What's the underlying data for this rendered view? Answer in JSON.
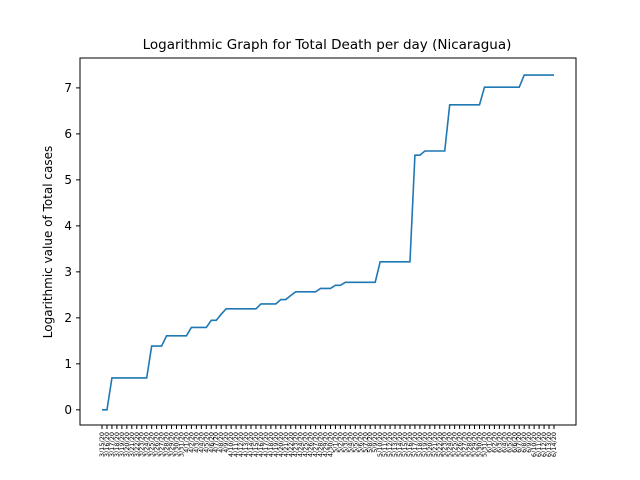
{
  "chart_data": {
    "type": "line",
    "title": "Logarithmic Graph for Total Death per day (Nicaragua)",
    "xlabel": "",
    "ylabel": "Logarithmic value of Total cases",
    "ylim": [
      -0.33,
      7.65
    ],
    "yticks": [
      0,
      1,
      2,
      3,
      4,
      5,
      6,
      7
    ],
    "grid": false,
    "x": [
      "3/15/20",
      "3/16/20",
      "3/17/20",
      "3/18/20",
      "3/19/20",
      "3/20/20",
      "3/21/20",
      "3/22/20",
      "3/23/20",
      "3/24/20",
      "3/25/20",
      "3/26/20",
      "3/27/20",
      "3/28/20",
      "3/29/20",
      "3/30/20",
      "3/31/20",
      "4/1/20",
      "4/2/20",
      "4/3/20",
      "4/4/20",
      "4/5/20",
      "4/6/20",
      "4/7/20",
      "4/8/20",
      "4/9/20",
      "4/10/20",
      "4/11/20",
      "4/12/20",
      "4/13/20",
      "4/14/20",
      "4/15/20",
      "4/16/20",
      "4/17/20",
      "4/18/20",
      "4/19/20",
      "4/20/20",
      "4/21/20",
      "4/22/20",
      "4/23/20",
      "4/24/20",
      "4/25/20",
      "4/26/20",
      "4/27/20",
      "4/28/20",
      "4/29/20",
      "4/30/20",
      "5/1/20",
      "5/2/20",
      "5/3/20",
      "5/4/20",
      "5/5/20",
      "5/6/20",
      "5/7/20",
      "5/8/20",
      "5/9/20",
      "5/10/20",
      "5/11/20",
      "5/12/20",
      "5/13/20",
      "5/14/20",
      "5/15/20",
      "5/16/20",
      "5/17/20",
      "5/18/20",
      "5/19/20",
      "5/20/20",
      "5/21/20",
      "5/22/20",
      "5/23/20",
      "5/24/20",
      "5/25/20",
      "5/26/20",
      "5/27/20",
      "5/28/20",
      "5/29/20",
      "5/30/20",
      "5/31/20",
      "6/1/20",
      "6/2/20",
      "6/3/20",
      "6/4/20",
      "6/5/20",
      "6/6/20",
      "6/7/20",
      "6/8/20",
      "6/9/20",
      "6/10/20",
      "6/11/20",
      "6/12/20",
      "6/13/20",
      "6/14/20"
    ],
    "series": [
      {
        "values": [
          0,
          0,
          0.693,
          0.693,
          0.693,
          0.693,
          0.693,
          0.693,
          0.693,
          0.693,
          1.386,
          1.386,
          1.386,
          1.609,
          1.609,
          1.609,
          1.609,
          1.609,
          1.792,
          1.792,
          1.792,
          1.792,
          1.946,
          1.946,
          2.079,
          2.197,
          2.197,
          2.197,
          2.197,
          2.197,
          2.197,
          2.197,
          2.303,
          2.303,
          2.303,
          2.303,
          2.398,
          2.398,
          2.485,
          2.565,
          2.565,
          2.565,
          2.565,
          2.565,
          2.639,
          2.639,
          2.639,
          2.708,
          2.708,
          2.773,
          2.773,
          2.773,
          2.773,
          2.773,
          2.773,
          2.773,
          3.219,
          3.219,
          3.219,
          3.219,
          3.219,
          3.219,
          3.219,
          5.537,
          5.537,
          5.628,
          5.628,
          5.628,
          5.628,
          5.628,
          6.631,
          6.631,
          6.631,
          6.631,
          6.631,
          6.631,
          6.631,
          7.015,
          7.015,
          7.015,
          7.015,
          7.015,
          7.015,
          7.015,
          7.015,
          7.28,
          7.28,
          7.28,
          7.28,
          7.28,
          7.28,
          7.28
        ]
      }
    ]
  }
}
